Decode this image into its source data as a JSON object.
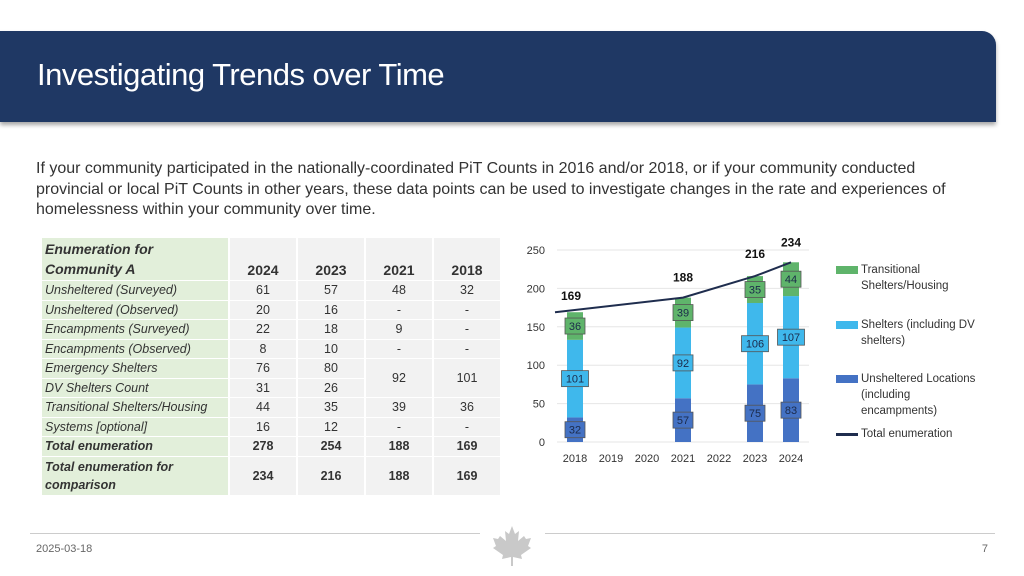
{
  "slide": {
    "title": "Investigating Trends over Time",
    "intro": "If your community participated in the nationally-coordinated PiT Counts in 2016 and/or 2018, or if your community conducted provincial or local PiT Counts in other years, these data points can be used to investigate changes in the rate and experiences of homelessness within your community over time.",
    "date": "2025-03-18",
    "page_number": "7",
    "logo": "maple-leaf-icon"
  },
  "table": {
    "header_label": "Enumeration for Community A",
    "years": [
      "2024",
      "2023",
      "2021",
      "2018"
    ],
    "rows": [
      {
        "label": "Unsheltered (Surveyed)",
        "values": [
          "61",
          "57",
          "48",
          "32"
        ]
      },
      {
        "label": "Unsheltered (Observed)",
        "values": [
          "20",
          "16",
          "-",
          "-"
        ]
      },
      {
        "label": "Encampments (Surveyed)",
        "values": [
          "22",
          "18",
          "9",
          "-"
        ]
      },
      {
        "label": "Encampments (Observed)",
        "values": [
          "8",
          "10",
          "-",
          "-"
        ]
      },
      {
        "label": "Emergency Shelters",
        "values": [
          "76",
          "80",
          "92",
          "101"
        ]
      },
      {
        "label": "DV Shelters Count",
        "values": [
          "31",
          "26"
        ]
      },
      {
        "label": "Transitional Shelters/Housing",
        "values": [
          "44",
          "35",
          "39",
          "36"
        ]
      },
      {
        "label": "Systems [optional]",
        "values": [
          "16",
          "12",
          "-",
          "-"
        ]
      },
      {
        "label": "Total enumeration",
        "values": [
          "278",
          "254",
          "188",
          "169"
        ]
      },
      {
        "label": "Total enumeration for comparison",
        "values": [
          "234",
          "216",
          "188",
          "169"
        ]
      }
    ]
  },
  "chart_data": {
    "type": "bar",
    "stacked": true,
    "categories": [
      "2018",
      "2019",
      "2020",
      "2021",
      "2022",
      "2023",
      "2024"
    ],
    "ylim": [
      0,
      250
    ],
    "yticks": [
      "0",
      "50",
      "100",
      "150",
      "200",
      "250"
    ],
    "series": [
      {
        "name": "Unsheltered Locations (including encampments)",
        "color": "#4472c4",
        "values": [
          32,
          null,
          null,
          57,
          null,
          75,
          83
        ]
      },
      {
        "name": "Shelters (including DV shelters)",
        "color": "#3fb8ec",
        "values": [
          101,
          null,
          null,
          92,
          null,
          106,
          107
        ]
      },
      {
        "name": "Transitional Shelters/Housing",
        "color": "#5fb46b",
        "values": [
          36,
          null,
          null,
          39,
          null,
          35,
          44
        ]
      }
    ],
    "total_line": {
      "name": "Total enumeration",
      "color": "#1f2d4e",
      "values": [
        169,
        null,
        null,
        188,
        null,
        216,
        234
      ]
    },
    "total_labels": [
      "169",
      "188",
      "216",
      "234"
    ]
  }
}
